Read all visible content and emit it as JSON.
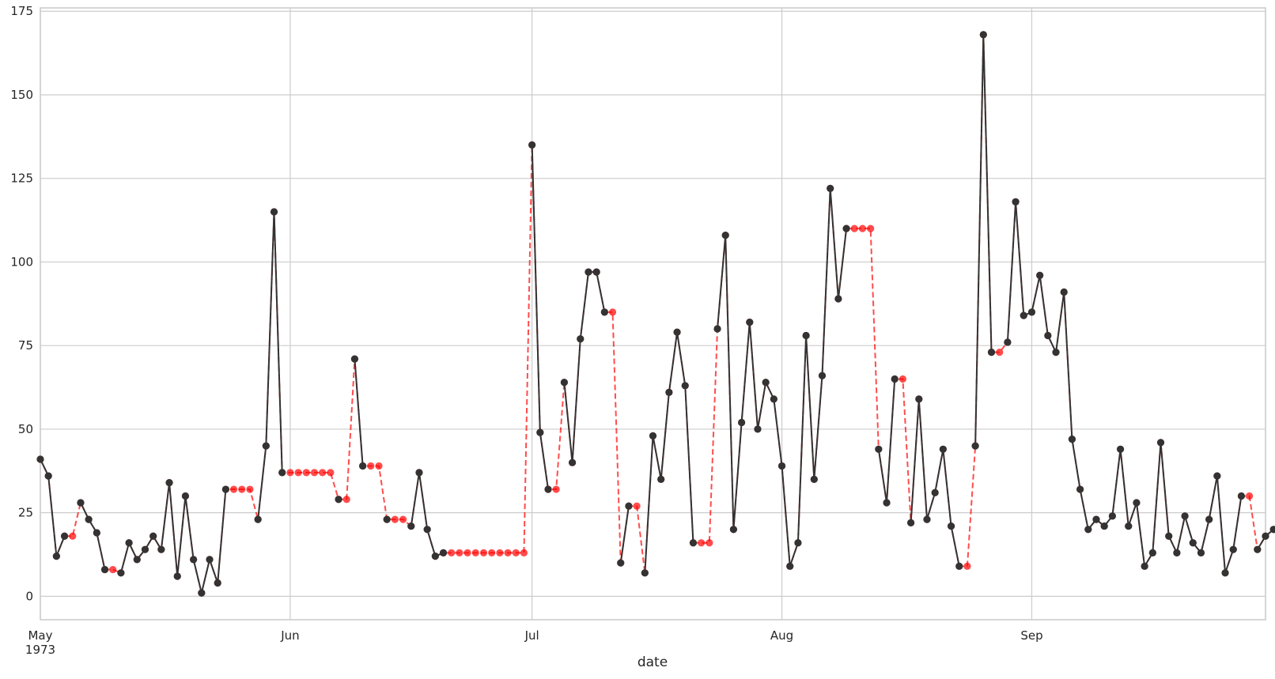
{
  "chart_data": {
    "type": "line",
    "xlabel": "date",
    "ylabel": "",
    "x_start": "1973-05-01",
    "x_end": "1973-09-30",
    "x_range": [
      "1973-05-01",
      "1973-09-30"
    ],
    "ylim": [
      -7,
      176
    ],
    "y_ticks": [
      0,
      25,
      50,
      75,
      100,
      125,
      150,
      175
    ],
    "x_ticks": [
      {
        "date": "1973-05-01",
        "label": "May",
        "sublabel": "1973"
      },
      {
        "date": "1973-06-01",
        "label": "Jun",
        "sublabel": ""
      },
      {
        "date": "1973-07-01",
        "label": "Jul",
        "sublabel": ""
      },
      {
        "date": "1973-08-01",
        "label": "Aug",
        "sublabel": ""
      },
      {
        "date": "1973-09-01",
        "label": "Sep",
        "sublabel": ""
      }
    ],
    "grid": true,
    "series": [
      {
        "color": "#ff0000",
        "line_style": "dashed",
        "values": [
          41,
          36,
          12,
          18,
          18,
          28,
          23,
          19,
          8,
          8,
          7,
          16,
          11,
          14,
          18,
          14,
          34,
          6,
          30,
          11,
          1,
          11,
          4,
          32,
          32,
          32,
          32,
          23,
          45,
          115,
          37,
          37,
          37,
          37,
          37,
          37,
          37,
          29,
          29,
          71,
          39,
          39,
          39,
          23,
          23,
          23,
          21,
          37,
          20,
          12,
          13,
          13,
          13,
          13,
          13,
          13,
          13,
          13,
          13,
          13,
          13,
          135,
          49,
          32,
          32,
          64,
          40,
          77,
          97,
          97,
          85,
          85,
          10,
          27,
          27,
          7,
          48,
          35,
          61,
          79,
          63,
          16,
          16,
          16,
          80,
          108,
          20,
          52,
          82,
          50,
          64,
          59,
          39,
          9,
          16,
          78,
          35,
          66,
          122,
          89,
          110,
          110,
          110,
          110,
          44,
          28,
          65,
          65,
          22,
          59,
          23,
          31,
          44,
          21,
          9,
          9,
          45,
          168,
          73,
          73,
          76,
          118,
          84,
          85,
          96,
          78,
          73,
          91,
          47,
          32,
          20,
          23,
          21,
          24,
          44,
          21,
          28,
          9,
          13,
          46,
          18,
          13,
          24,
          16,
          13,
          23,
          36,
          7,
          14,
          30,
          30,
          14,
          18,
          20
        ]
      },
      {
        "color": "#333333",
        "line_style": "solid",
        "values": [
          41,
          36,
          12,
          18,
          null,
          28,
          23,
          19,
          8,
          null,
          7,
          16,
          11,
          14,
          18,
          14,
          34,
          6,
          30,
          11,
          1,
          11,
          4,
          32,
          null,
          null,
          null,
          23,
          45,
          115,
          37,
          null,
          null,
          null,
          null,
          null,
          null,
          29,
          null,
          71,
          39,
          null,
          null,
          23,
          null,
          null,
          21,
          37,
          20,
          12,
          13,
          null,
          null,
          null,
          null,
          null,
          null,
          null,
          null,
          null,
          null,
          135,
          49,
          32,
          null,
          64,
          40,
          77,
          97,
          97,
          85,
          null,
          10,
          27,
          null,
          7,
          48,
          35,
          61,
          79,
          63,
          16,
          null,
          null,
          80,
          108,
          20,
          52,
          82,
          50,
          64,
          59,
          39,
          9,
          16,
          78,
          35,
          66,
          122,
          89,
          110,
          null,
          null,
          null,
          44,
          28,
          65,
          null,
          22,
          59,
          23,
          31,
          44,
          21,
          9,
          null,
          45,
          168,
          73,
          null,
          76,
          118,
          84,
          85,
          96,
          78,
          73,
          91,
          47,
          32,
          20,
          23,
          21,
          24,
          44,
          21,
          28,
          9,
          13,
          46,
          18,
          13,
          24,
          16,
          13,
          23,
          36,
          7,
          14,
          30,
          null,
          14,
          18,
          20
        ]
      }
    ]
  }
}
